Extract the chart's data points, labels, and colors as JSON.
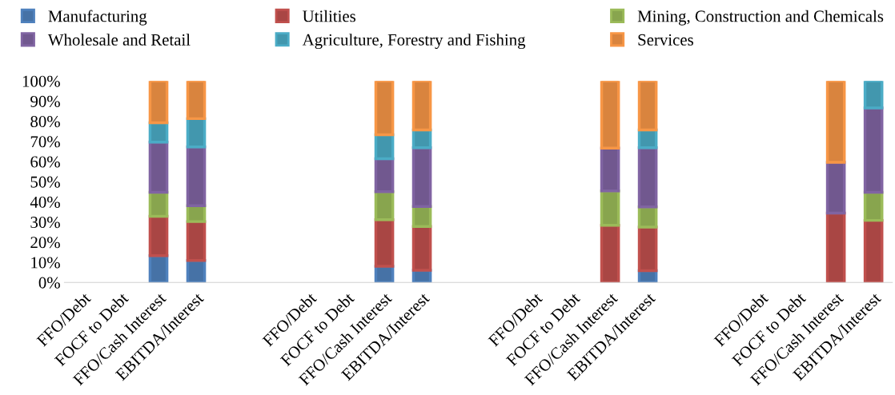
{
  "chart_data": {
    "type": "bar",
    "stacked": true,
    "legend": "top",
    "grid": false,
    "categories": [
      "FFO/Debt",
      "FOCF to Debt",
      "FFO/Cash Interest",
      "EBITDA/Interest",
      null,
      null,
      "FFO/Debt",
      "FOCF to Debt",
      "FFO/Cash Interest",
      "EBITDA/Interest",
      null,
      null,
      "FFO/Debt",
      "FOCF to Debt",
      "FFO/Cash Interest",
      "EBITDA/Interest",
      null,
      null,
      "FFO/Debt",
      "FOCF to Debt",
      "FFO/Cash Interest",
      "EBITDA/Interest"
    ],
    "ylim": [
      0,
      100
    ],
    "yticks": [
      {
        "value": 0,
        "label": "0%"
      },
      {
        "value": 10,
        "label": "10%"
      },
      {
        "value": 20,
        "label": "20%"
      },
      {
        "value": 30,
        "label": "30%"
      },
      {
        "value": 40,
        "label": "40%"
      },
      {
        "value": 50,
        "label": "50%"
      },
      {
        "value": 60,
        "label": "60%"
      },
      {
        "value": 70,
        "label": "70%"
      },
      {
        "value": 80,
        "label": "80%"
      },
      {
        "value": 90,
        "label": "90%"
      },
      {
        "value": 100,
        "label": "100%"
      }
    ],
    "series": [
      {
        "name": "Manufacturing",
        "color": "#4f81bd",
        "values": [
          null,
          null,
          13.3,
          10.9,
          null,
          null,
          null,
          null,
          8.0,
          6.0,
          null,
          null,
          null,
          null,
          null,
          5.8,
          null,
          null,
          null,
          null,
          null,
          null
        ]
      },
      {
        "name": "Utilities",
        "color": "#c0504d",
        "values": [
          null,
          null,
          19.5,
          19.3,
          null,
          null,
          null,
          null,
          23.1,
          21.8,
          null,
          null,
          null,
          null,
          28.4,
          21.7,
          null,
          null,
          null,
          null,
          34.4,
          30.8
        ]
      },
      {
        "name": "Mining, Construction and Chemicals",
        "color": "#9bbb59",
        "values": [
          null,
          null,
          11.9,
          7.9,
          null,
          null,
          null,
          null,
          13.9,
          9.9,
          null,
          null,
          null,
          null,
          17.0,
          10.0,
          null,
          null,
          null,
          null,
          null,
          13.9
        ]
      },
      {
        "name": "Wholesale and Retail",
        "color": "#8064a2",
        "values": [
          null,
          null,
          24.9,
          29.2,
          null,
          null,
          null,
          null,
          16.4,
          29.2,
          null,
          null,
          null,
          null,
          21.3,
          29.4,
          null,
          null,
          null,
          null,
          25.2,
          41.9
        ]
      },
      {
        "name": "Agriculture, Forestry and Fishing",
        "color": "#4bacc6",
        "values": [
          null,
          null,
          9.7,
          14.0,
          null,
          null,
          null,
          null,
          11.9,
          8.8,
          null,
          null,
          null,
          null,
          null,
          8.8,
          null,
          null,
          null,
          null,
          null,
          13.4
        ]
      },
      {
        "name": "Services",
        "color": "#f79646",
        "values": [
          null,
          null,
          20.7,
          18.7,
          null,
          null,
          null,
          null,
          26.7,
          24.3,
          null,
          null,
          null,
          null,
          33.3,
          24.3,
          null,
          null,
          null,
          null,
          40.4,
          null
        ]
      }
    ]
  }
}
